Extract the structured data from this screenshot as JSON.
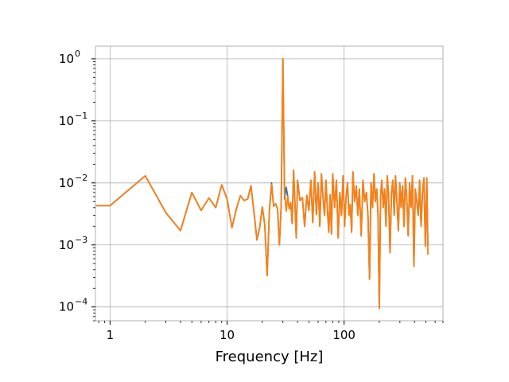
{
  "chart_data": {
    "type": "line",
    "title": "",
    "xlabel": "Frequency [Hz]",
    "ylabel": "",
    "xscale": "log",
    "yscale": "log",
    "xlim": [
      0.75,
      700
    ],
    "ylim": [
      6e-05,
      1.6
    ],
    "grid": true,
    "legend": "none",
    "x_ticks": [
      {
        "value": 1,
        "label": "1"
      },
      {
        "value": 10,
        "label": "10"
      },
      {
        "value": 100,
        "label": "100"
      }
    ],
    "y_ticks": [
      {
        "value": 0.0001,
        "base": "10",
        "exp": "−4"
      },
      {
        "value": 0.001,
        "base": "10",
        "exp": "−3"
      },
      {
        "value": 0.01,
        "base": "10",
        "exp": "−2"
      },
      {
        "value": 0.1,
        "base": "10",
        "exp": "−1"
      },
      {
        "value": 1,
        "base": "10",
        "exp": "0"
      }
    ],
    "series": [
      {
        "color": "#1f77b4",
        "points": [
          [
            0.75,
            0.0043
          ],
          [
            1,
            0.0043
          ],
          [
            2,
            0.013
          ],
          [
            3,
            0.0033
          ],
          [
            4,
            0.0017
          ],
          [
            5,
            0.007
          ],
          [
            6,
            0.0036
          ],
          [
            7,
            0.0057
          ],
          [
            8,
            0.004
          ],
          [
            9,
            0.0093
          ],
          [
            10,
            0.0055
          ],
          [
            11,
            0.0019
          ],
          [
            12,
            0.0038
          ],
          [
            13,
            0.0062
          ],
          [
            14,
            0.0052
          ],
          [
            15,
            0.0055
          ],
          [
            16,
            0.009
          ],
          [
            17,
            0.0033
          ],
          [
            18,
            0.0012
          ],
          [
            19,
            0.0019
          ],
          [
            20,
            0.0041
          ],
          [
            21,
            0.0021
          ],
          [
            22,
            0.00032
          ],
          [
            23,
            0.0036
          ],
          [
            24,
            0.01
          ],
          [
            25,
            0.0042
          ],
          [
            26,
            0.0046
          ],
          [
            27,
            0.0038
          ],
          [
            28,
            0.001
          ],
          [
            29,
            0.0042
          ],
          [
            30,
            1.0
          ],
          [
            31,
            0.0055
          ],
          [
            32,
            0.0085
          ],
          [
            33,
            0.006
          ],
          [
            34,
            0.0038
          ],
          [
            35,
            0.0048
          ],
          [
            36,
            0.0022
          ],
          [
            37,
            0.016
          ],
          [
            38,
            0.0048
          ],
          [
            39,
            0.0013
          ],
          [
            40,
            0.011
          ],
          [
            42,
            0.0052
          ],
          [
            44,
            0.0058
          ],
          [
            46,
            0.002
          ],
          [
            48,
            0.0063
          ],
          [
            50,
            0.0036
          ],
          [
            52,
            0.011
          ],
          [
            54,
            0.0023
          ],
          [
            56,
            0.015
          ],
          [
            58,
            0.0031
          ],
          [
            60,
            0.01
          ],
          [
            62,
            0.002
          ],
          [
            64,
            0.014
          ],
          [
            66,
            0.006
          ],
          [
            68,
            0.003
          ],
          [
            70,
            0.011
          ],
          [
            72,
            0.0038
          ],
          [
            74,
            0.0016
          ],
          [
            76,
            0.0064
          ],
          [
            78,
            0.0015
          ],
          [
            80,
            0.014
          ],
          [
            83,
            0.004
          ],
          [
            86,
            0.011
          ],
          [
            89,
            0.0013
          ],
          [
            92,
            0.007
          ],
          [
            95,
            0.003
          ],
          [
            98,
            0.013
          ],
          [
            101,
            0.002
          ],
          [
            104,
            0.006
          ],
          [
            107,
            0.01
          ],
          [
            110,
            0.003
          ],
          [
            113,
            0.0045
          ],
          [
            116,
            0.0016
          ],
          [
            119,
            0.015
          ],
          [
            123,
            0.005
          ],
          [
            127,
            0.009
          ],
          [
            131,
            0.003
          ],
          [
            135,
            0.008
          ],
          [
            140,
            0.0014
          ],
          [
            145,
            0.011
          ],
          [
            150,
            0.005
          ],
          [
            155,
            0.007
          ],
          [
            160,
            0.003
          ],
          [
            165,
            0.00028
          ],
          [
            170,
            0.01
          ],
          [
            175,
            0.004
          ],
          [
            180,
            0.014
          ],
          [
            185,
            0.005
          ],
          [
            190,
            0.008
          ],
          [
            195,
            0.003
          ],
          [
            200,
            9.5e-05
          ],
          [
            205,
            0.006
          ],
          [
            210,
            0.011
          ],
          [
            216,
            0.004
          ],
          [
            222,
            0.008
          ],
          [
            228,
            0.002
          ],
          [
            234,
            0.013
          ],
          [
            240,
            0.006
          ],
          [
            247,
            0.00075
          ],
          [
            254,
            0.007
          ],
          [
            261,
            0.011
          ],
          [
            268,
            0.003
          ],
          [
            275,
            0.013
          ],
          [
            283,
            0.005
          ],
          [
            291,
            0.0017
          ],
          [
            299,
            0.01
          ],
          [
            307,
            0.004
          ],
          [
            316,
            0.009
          ],
          [
            325,
            0.002
          ],
          [
            334,
            0.012
          ],
          [
            343,
            0.006
          ],
          [
            353,
            0.0014
          ],
          [
            363,
            0.01
          ],
          [
            373,
            0.004
          ],
          [
            384,
            0.013
          ],
          [
            395,
            0.00045
          ],
          [
            406,
            0.008
          ],
          [
            418,
            0.005
          ],
          [
            430,
            0.003
          ],
          [
            442,
            0.011
          ],
          [
            455,
            0.002
          ],
          [
            468,
            0.007
          ],
          [
            481,
            0.012
          ],
          [
            495,
            0.00095
          ],
          [
            509,
            0.012
          ],
          [
            520,
            0.001
          ]
        ]
      },
      {
        "color": "#ff7f0e",
        "points": [
          [
            0.75,
            0.0043
          ],
          [
            1,
            0.0043
          ],
          [
            2,
            0.013
          ],
          [
            3,
            0.0033
          ],
          [
            4,
            0.0017
          ],
          [
            5,
            0.007
          ],
          [
            6,
            0.0036
          ],
          [
            7,
            0.0057
          ],
          [
            8,
            0.004
          ],
          [
            9,
            0.0093
          ],
          [
            10,
            0.0055
          ],
          [
            11,
            0.0019
          ],
          [
            12,
            0.0038
          ],
          [
            13,
            0.0062
          ],
          [
            14,
            0.0052
          ],
          [
            15,
            0.0055
          ],
          [
            16,
            0.009
          ],
          [
            17,
            0.0033
          ],
          [
            18,
            0.0012
          ],
          [
            19,
            0.0019
          ],
          [
            20,
            0.0041
          ],
          [
            21,
            0.0021
          ],
          [
            22,
            0.00032
          ],
          [
            23,
            0.0036
          ],
          [
            24,
            0.0095
          ],
          [
            25,
            0.0042
          ],
          [
            26,
            0.0046
          ],
          [
            27,
            0.0038
          ],
          [
            28,
            0.001
          ],
          [
            29,
            0.0042
          ],
          [
            30,
            1.0
          ],
          [
            31,
            0.007
          ],
          [
            32,
            0.0035
          ],
          [
            33,
            0.006
          ],
          [
            34,
            0.0038
          ],
          [
            35,
            0.0048
          ],
          [
            36,
            0.0022
          ],
          [
            37,
            0.016
          ],
          [
            38,
            0.0048
          ],
          [
            39,
            0.0013
          ],
          [
            40,
            0.011
          ],
          [
            42,
            0.0052
          ],
          [
            44,
            0.0058
          ],
          [
            46,
            0.002
          ],
          [
            48,
            0.0063
          ],
          [
            50,
            0.0036
          ],
          [
            52,
            0.011
          ],
          [
            54,
            0.0023
          ],
          [
            56,
            0.015
          ],
          [
            58,
            0.0031
          ],
          [
            60,
            0.01
          ],
          [
            62,
            0.002
          ],
          [
            64,
            0.014
          ],
          [
            66,
            0.006
          ],
          [
            68,
            0.003
          ],
          [
            70,
            0.011
          ],
          [
            72,
            0.0038
          ],
          [
            74,
            0.0016
          ],
          [
            76,
            0.0064
          ],
          [
            78,
            0.0015
          ],
          [
            80,
            0.014
          ],
          [
            83,
            0.004
          ],
          [
            86,
            0.011
          ],
          [
            89,
            0.0013
          ],
          [
            92,
            0.007
          ],
          [
            95,
            0.003
          ],
          [
            98,
            0.013
          ],
          [
            101,
            0.002
          ],
          [
            104,
            0.006
          ],
          [
            107,
            0.01
          ],
          [
            110,
            0.003
          ],
          [
            113,
            0.0045
          ],
          [
            116,
            0.0016
          ],
          [
            119,
            0.015
          ],
          [
            123,
            0.005
          ],
          [
            127,
            0.009
          ],
          [
            131,
            0.003
          ],
          [
            135,
            0.008
          ],
          [
            140,
            0.0014
          ],
          [
            145,
            0.011
          ],
          [
            150,
            0.005
          ],
          [
            155,
            0.007
          ],
          [
            160,
            0.003
          ],
          [
            165,
            0.00028
          ],
          [
            170,
            0.01
          ],
          [
            175,
            0.004
          ],
          [
            180,
            0.014
          ],
          [
            185,
            0.005
          ],
          [
            190,
            0.008
          ],
          [
            195,
            0.003
          ],
          [
            200,
            9.5e-05
          ],
          [
            205,
            0.006
          ],
          [
            210,
            0.011
          ],
          [
            216,
            0.004
          ],
          [
            222,
            0.008
          ],
          [
            228,
            0.002
          ],
          [
            234,
            0.013
          ],
          [
            240,
            0.006
          ],
          [
            247,
            0.00075
          ],
          [
            254,
            0.007
          ],
          [
            261,
            0.011
          ],
          [
            268,
            0.003
          ],
          [
            275,
            0.013
          ],
          [
            283,
            0.005
          ],
          [
            291,
            0.0017
          ],
          [
            299,
            0.01
          ],
          [
            307,
            0.004
          ],
          [
            316,
            0.009
          ],
          [
            325,
            0.002
          ],
          [
            334,
            0.012
          ],
          [
            343,
            0.006
          ],
          [
            353,
            0.0014
          ],
          [
            363,
            0.01
          ],
          [
            373,
            0.004
          ],
          [
            384,
            0.013
          ],
          [
            395,
            0.00045
          ],
          [
            406,
            0.008
          ],
          [
            418,
            0.005
          ],
          [
            430,
            0.003
          ],
          [
            442,
            0.011
          ],
          [
            455,
            0.002
          ],
          [
            468,
            0.007
          ],
          [
            481,
            0.012
          ],
          [
            495,
            0.00095
          ],
          [
            509,
            0.012
          ],
          [
            520,
            0.0007
          ]
        ]
      }
    ]
  }
}
